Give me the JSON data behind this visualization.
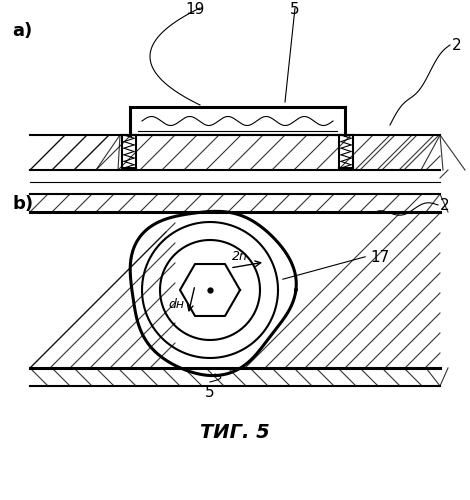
{
  "title": "ΤИГ. 5",
  "label_a": "a)",
  "label_b": "b)",
  "label_19": "19",
  "label_5a": "5",
  "label_2a": "2",
  "label_2b": "2",
  "label_5b": "5",
  "label_17": "17",
  "label_2n": "2n",
  "label_dn": "dн",
  "bg_color": "#ffffff",
  "line_color": "#000000"
}
